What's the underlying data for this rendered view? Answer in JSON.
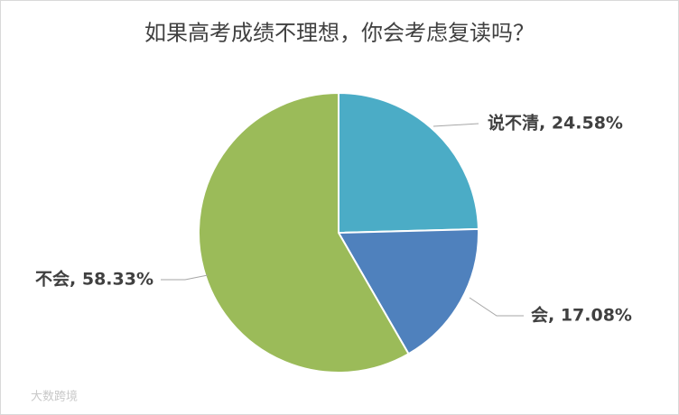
{
  "chart_data": {
    "type": "pie",
    "title": "如果高考成绩不理想，你会考虑复读吗？",
    "values": [
      24.58,
      17.08,
      58.33
    ],
    "value_labels": [
      "说不清, 24.58%",
      "会, 17.08%",
      "不会, 58.33%"
    ],
    "colors": [
      "#4bacc6",
      "#4f81bd",
      "#9bbb59"
    ]
  },
  "watermark": "大数跨境"
}
